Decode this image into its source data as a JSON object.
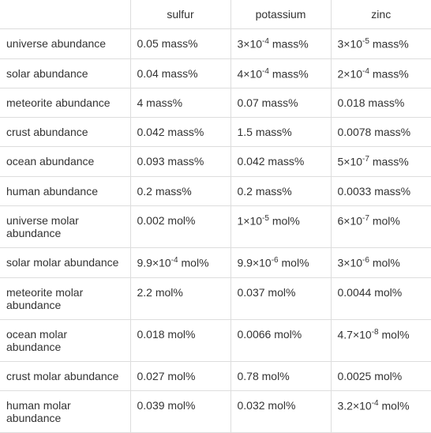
{
  "table": {
    "columns": [
      "",
      "sulfur",
      "potassium",
      "zinc"
    ],
    "rows": [
      {
        "label": "universe abundance",
        "sulfur": "0.05 mass%",
        "potassium": "3×10⁻⁴ mass%",
        "zinc": "3×10⁻⁵ mass%"
      },
      {
        "label": "solar abundance",
        "sulfur": "0.04 mass%",
        "potassium": "4×10⁻⁴ mass%",
        "zinc": "2×10⁻⁴ mass%"
      },
      {
        "label": "meteorite abundance",
        "sulfur": "4 mass%",
        "potassium": "0.07 mass%",
        "zinc": "0.018 mass%"
      },
      {
        "label": "crust abundance",
        "sulfur": "0.042 mass%",
        "potassium": "1.5 mass%",
        "zinc": "0.0078 mass%"
      },
      {
        "label": "ocean abundance",
        "sulfur": "0.093 mass%",
        "potassium": "0.042 mass%",
        "zinc": "5×10⁻⁷ mass%"
      },
      {
        "label": "human abundance",
        "sulfur": "0.2 mass%",
        "potassium": "0.2 mass%",
        "zinc": "0.0033 mass%"
      },
      {
        "label": "universe molar abundance",
        "sulfur": "0.002 mol%",
        "potassium": "1×10⁻⁵ mol%",
        "zinc": "6×10⁻⁷ mol%"
      },
      {
        "label": "solar molar abundance",
        "sulfur": "9.9×10⁻⁴ mol%",
        "potassium": "9.9×10⁻⁶ mol%",
        "zinc": "3×10⁻⁶ mol%"
      },
      {
        "label": "meteorite molar abundance",
        "sulfur": "2.2 mol%",
        "potassium": "0.037 mol%",
        "zinc": "0.0044 mol%"
      },
      {
        "label": "ocean molar abundance",
        "sulfur": "0.018 mol%",
        "potassium": "0.0066 mol%",
        "zinc": "4.7×10⁻⁸ mol%"
      },
      {
        "label": "crust molar abundance",
        "sulfur": "0.027 mol%",
        "potassium": "0.78 mol%",
        "zinc": "0.0025 mol%"
      },
      {
        "label": "human molar abundance",
        "sulfur": "0.039 mol%",
        "potassium": "0.032 mol%",
        "zinc": "3.2×10⁻⁴ mol%"
      }
    ],
    "column_widths": [
      "165px",
      "127px",
      "127px",
      "127px"
    ],
    "border_color": "#ddd",
    "font_size": 14,
    "text_color": "#333",
    "background_color": "#ffffff"
  }
}
